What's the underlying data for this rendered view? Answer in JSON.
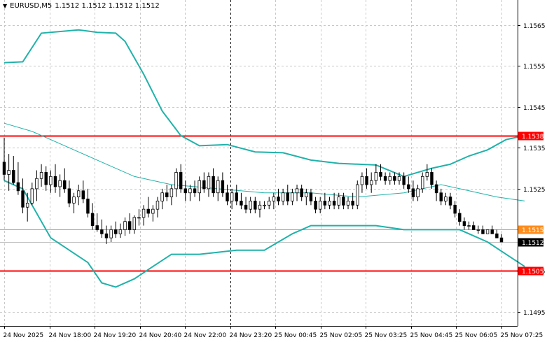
{
  "header": {
    "menu_icon": "triangle-down-icon",
    "symbol": "EURUSD,M5",
    "quote": "1.1512 1.1512 1.1512 1.1512"
  },
  "colors": {
    "background": "#ffffff",
    "grid": "#c8c8c8",
    "bollinger": "#20b2aa",
    "candle": "#000000",
    "level_line": "#ff0000",
    "level_label_bg": "#ff0000",
    "bid_label_bg": "#000000",
    "orange_line": "#ff8c1a",
    "axis_text": "#000000"
  },
  "chart_data": {
    "type": "candlestick",
    "symbol": "EURUSD",
    "timeframe": "M5",
    "y_ticks": [
      "1.1565",
      "1.1555",
      "1.1545",
      "1.1535",
      "1.1525",
      "1.1505",
      "1.1495"
    ],
    "x_ticks": [
      "24 Nov 2025",
      "24 Nov 18:00",
      "24 Nov 19:20",
      "24 Nov 20:40",
      "24 Nov 22:00",
      "24 Nov 23:20",
      "25 Nov 00:45",
      "25 Nov 02:05",
      "25 Nov 03:25",
      "25 Nov 04:45",
      "25 Nov 06:05",
      "25 Nov 07:25"
    ],
    "ylim": [
      1.14915,
      1.15711
    ],
    "levels": [
      {
        "label": "1.1538",
        "value": 1.1538,
        "kind": "resistance",
        "color": "#ff0000"
      },
      {
        "label": "1.1515",
        "value": 1.1515,
        "kind": "level",
        "color": "#ff8c1a"
      },
      {
        "label": "1.1505",
        "value": 1.1505,
        "kind": "support",
        "color": "#ff0000"
      }
    ],
    "current_price": {
      "label": "1.1512",
      "value": 1.1512
    },
    "separator_time": "24 Nov 23:20",
    "candles": [
      [
        1.15315,
        1.15375,
        1.1527,
        1.15285
      ],
      [
        1.15285,
        1.15335,
        1.15245,
        1.15295
      ],
      [
        1.15295,
        1.1533,
        1.1526,
        1.15265
      ],
      [
        1.15265,
        1.15315,
        1.15235,
        1.15245
      ],
      [
        1.15245,
        1.15275,
        1.1519,
        1.15205
      ],
      [
        1.15205,
        1.1524,
        1.1517,
        1.15215
      ],
      [
        1.15215,
        1.15265,
        1.1521,
        1.1525
      ],
      [
        1.1525,
        1.15295,
        1.1522,
        1.15275
      ],
      [
        1.15275,
        1.1531,
        1.15255,
        1.1529
      ],
      [
        1.1529,
        1.15305,
        1.15245,
        1.1526
      ],
      [
        1.1526,
        1.15295,
        1.1524,
        1.1528
      ],
      [
        1.1528,
        1.1531,
        1.1524,
        1.15255
      ],
      [
        1.15255,
        1.15285,
        1.1523,
        1.1527
      ],
      [
        1.1527,
        1.153,
        1.1524,
        1.1525
      ],
      [
        1.1525,
        1.1527,
        1.15205,
        1.15215
      ],
      [
        1.15215,
        1.1524,
        1.1519,
        1.1523
      ],
      [
        1.1523,
        1.1526,
        1.1521,
        1.15245
      ],
      [
        1.15245,
        1.1527,
        1.15215,
        1.15225
      ],
      [
        1.15225,
        1.1525,
        1.1518,
        1.1519
      ],
      [
        1.1519,
        1.15215,
        1.1515,
        1.1516
      ],
      [
        1.1516,
        1.1519,
        1.15145,
        1.1515
      ],
      [
        1.1515,
        1.15175,
        1.1513,
        1.1514
      ],
      [
        1.1514,
        1.1516,
        1.15115,
        1.1513
      ],
      [
        1.1513,
        1.1516,
        1.1512,
        1.1515
      ],
      [
        1.1515,
        1.1517,
        1.1513,
        1.1514
      ],
      [
        1.1514,
        1.15165,
        1.1513,
        1.1515
      ],
      [
        1.1515,
        1.1518,
        1.15135,
        1.1517
      ],
      [
        1.1517,
        1.1519,
        1.1514,
        1.1515
      ],
      [
        1.1515,
        1.15185,
        1.1514,
        1.1518
      ],
      [
        1.1518,
        1.152,
        1.1516,
        1.1518
      ],
      [
        1.1518,
        1.1521,
        1.1516,
        1.152
      ],
      [
        1.152,
        1.1523,
        1.1518,
        1.1519
      ],
      [
        1.1519,
        1.1521,
        1.1517,
        1.152
      ],
      [
        1.152,
        1.1523,
        1.1518,
        1.1522
      ],
      [
        1.1522,
        1.1525,
        1.152,
        1.1524
      ],
      [
        1.1524,
        1.1526,
        1.1522,
        1.1523
      ],
      [
        1.1523,
        1.1526,
        1.1521,
        1.1525
      ],
      [
        1.1525,
        1.153,
        1.1523,
        1.1529
      ],
      [
        1.1529,
        1.1531,
        1.1524,
        1.1525
      ],
      [
        1.1525,
        1.1527,
        1.1522,
        1.1524
      ],
      [
        1.1524,
        1.1526,
        1.1522,
        1.1525
      ],
      [
        1.1525,
        1.1527,
        1.1523,
        1.1524
      ],
      [
        1.1524,
        1.1528,
        1.1522,
        1.1527
      ],
      [
        1.1527,
        1.1529,
        1.1524,
        1.1525
      ],
      [
        1.1525,
        1.1529,
        1.1523,
        1.1528
      ],
      [
        1.1528,
        1.153,
        1.1523,
        1.1524
      ],
      [
        1.1524,
        1.1528,
        1.1522,
        1.1527
      ],
      [
        1.1527,
        1.1529,
        1.1523,
        1.1524
      ],
      [
        1.1524,
        1.1526,
        1.1521,
        1.1522
      ],
      [
        1.1522,
        1.1525,
        1.152,
        1.1524
      ],
      [
        1.1524,
        1.1526,
        1.1521,
        1.1522
      ],
      [
        1.1522,
        1.1524,
        1.152,
        1.1521
      ],
      [
        1.1521,
        1.1523,
        1.1519,
        1.152
      ],
      [
        1.152,
        1.1523,
        1.1519,
        1.1522
      ],
      [
        1.1522,
        1.1523,
        1.1519,
        1.152
      ],
      [
        1.152,
        1.1522,
        1.1518,
        1.1521
      ],
      [
        1.1521,
        1.1522,
        1.152,
        1.1521
      ],
      [
        1.1521,
        1.1523,
        1.152,
        1.1522
      ],
      [
        1.1522,
        1.1524,
        1.152,
        1.1523
      ],
      [
        1.1523,
        1.1525,
        1.1521,
        1.1522
      ],
      [
        1.1522,
        1.1525,
        1.1521,
        1.1524
      ],
      [
        1.1524,
        1.1526,
        1.1521,
        1.1522
      ],
      [
        1.1522,
        1.1525,
        1.1521,
        1.1524
      ],
      [
        1.1524,
        1.1526,
        1.1522,
        1.1525
      ],
      [
        1.1525,
        1.1526,
        1.1522,
        1.1523
      ],
      [
        1.1523,
        1.1525,
        1.1521,
        1.1524
      ],
      [
        1.1524,
        1.1525,
        1.1521,
        1.1522
      ],
      [
        1.1522,
        1.1523,
        1.1519,
        1.152
      ],
      [
        1.152,
        1.1523,
        1.1519,
        1.1522
      ],
      [
        1.1522,
        1.1524,
        1.152,
        1.1521
      ],
      [
        1.1521,
        1.1523,
        1.152,
        1.1522
      ],
      [
        1.1522,
        1.1524,
        1.152,
        1.1521
      ],
      [
        1.1521,
        1.1524,
        1.152,
        1.1523
      ],
      [
        1.1523,
        1.1524,
        1.152,
        1.1521
      ],
      [
        1.1521,
        1.1523,
        1.152,
        1.1522
      ],
      [
        1.1522,
        1.1524,
        1.152,
        1.1521
      ],
      [
        1.1521,
        1.1527,
        1.152,
        1.1526
      ],
      [
        1.1526,
        1.1529,
        1.1524,
        1.1528
      ],
      [
        1.1528,
        1.153,
        1.1525,
        1.1526
      ],
      [
        1.1526,
        1.1529,
        1.1524,
        1.1527
      ],
      [
        1.1527,
        1.1531,
        1.1526,
        1.1529
      ],
      [
        1.1529,
        1.1531,
        1.1527,
        1.1528
      ],
      [
        1.1528,
        1.1529,
        1.1526,
        1.1527
      ],
      [
        1.1527,
        1.1529,
        1.1526,
        1.1528
      ],
      [
        1.1528,
        1.1529,
        1.1526,
        1.1527
      ],
      [
        1.1527,
        1.1529,
        1.1526,
        1.1528
      ],
      [
        1.1528,
        1.1529,
        1.1525,
        1.1526
      ],
      [
        1.1526,
        1.1528,
        1.1524,
        1.1525
      ],
      [
        1.1525,
        1.1527,
        1.1522,
        1.1523
      ],
      [
        1.1523,
        1.1526,
        1.1522,
        1.1525
      ],
      [
        1.1525,
        1.1529,
        1.1524,
        1.1528
      ],
      [
        1.1528,
        1.1531,
        1.1527,
        1.1529
      ],
      [
        1.1529,
        1.153,
        1.1525,
        1.1526
      ],
      [
        1.1526,
        1.1527,
        1.1522,
        1.1524
      ],
      [
        1.1524,
        1.1525,
        1.1521,
        1.1522
      ],
      [
        1.1522,
        1.1524,
        1.1521,
        1.1523
      ],
      [
        1.1523,
        1.1524,
        1.152,
        1.1521
      ],
      [
        1.1521,
        1.1522,
        1.1518,
        1.1519
      ],
      [
        1.1519,
        1.152,
        1.1516,
        1.1517
      ],
      [
        1.1517,
        1.1518,
        1.1515,
        1.1516
      ],
      [
        1.1516,
        1.1517,
        1.1515,
        1.1516
      ],
      [
        1.1516,
        1.1517,
        1.1515,
        1.1515
      ],
      [
        1.1515,
        1.1516,
        1.1514,
        1.1515
      ],
      [
        1.1515,
        1.1516,
        1.1514,
        1.1514
      ],
      [
        1.1514,
        1.1515,
        1.1514,
        1.1515
      ],
      [
        1.1515,
        1.1516,
        1.1514,
        1.1514
      ],
      [
        1.1514,
        1.1515,
        1.1513,
        1.1513
      ],
      [
        1.1513,
        1.1514,
        1.1512,
        1.1512
      ]
    ],
    "bollinger": {
      "upper": [
        [
          0,
          1.15558
        ],
        [
          4,
          1.1556
        ],
        [
          8,
          1.1563
        ],
        [
          16,
          1.15638
        ],
        [
          20,
          1.15632
        ],
        [
          24,
          1.1563
        ],
        [
          26,
          1.1561
        ],
        [
          30,
          1.1553
        ],
        [
          34,
          1.1544
        ],
        [
          38,
          1.1538
        ],
        [
          42,
          1.15355
        ],
        [
          48,
          1.15358
        ],
        [
          54,
          1.1534
        ],
        [
          60,
          1.15338
        ],
        [
          66,
          1.1532
        ],
        [
          72,
          1.15312
        ],
        [
          80,
          1.15308
        ],
        [
          86,
          1.1528
        ],
        [
          92,
          1.153
        ],
        [
          96,
          1.1531
        ],
        [
          100,
          1.1533
        ],
        [
          104,
          1.15345
        ],
        [
          108,
          1.1537
        ],
        [
          112,
          1.1538
        ]
      ],
      "middle": [
        [
          0,
          1.1541
        ],
        [
          6,
          1.1539
        ],
        [
          14,
          1.1535
        ],
        [
          20,
          1.1532
        ],
        [
          28,
          1.1528
        ],
        [
          36,
          1.1526
        ],
        [
          46,
          1.1525
        ],
        [
          56,
          1.1524
        ],
        [
          66,
          1.1524
        ],
        [
          76,
          1.1523
        ],
        [
          86,
          1.1524
        ],
        [
          94,
          1.1526
        ],
        [
          100,
          1.15245
        ],
        [
          106,
          1.1523
        ],
        [
          112,
          1.1522
        ]
      ],
      "lower": [
        [
          0,
          1.1527
        ],
        [
          4,
          1.1525
        ],
        [
          10,
          1.1513
        ],
        [
          14,
          1.151
        ],
        [
          18,
          1.1507
        ],
        [
          21,
          1.1502
        ],
        [
          24,
          1.1501
        ],
        [
          28,
          1.1503
        ],
        [
          32,
          1.1506
        ],
        [
          36,
          1.1509
        ],
        [
          42,
          1.1509
        ],
        [
          50,
          1.151
        ],
        [
          56,
          1.151
        ],
        [
          62,
          1.1514
        ],
        [
          66,
          1.1516
        ],
        [
          72,
          1.1516
        ],
        [
          80,
          1.1516
        ],
        [
          86,
          1.1515
        ],
        [
          92,
          1.1515
        ],
        [
          98,
          1.1515
        ],
        [
          104,
          1.1512
        ],
        [
          108,
          1.1509
        ],
        [
          112,
          1.1506
        ]
      ]
    }
  }
}
